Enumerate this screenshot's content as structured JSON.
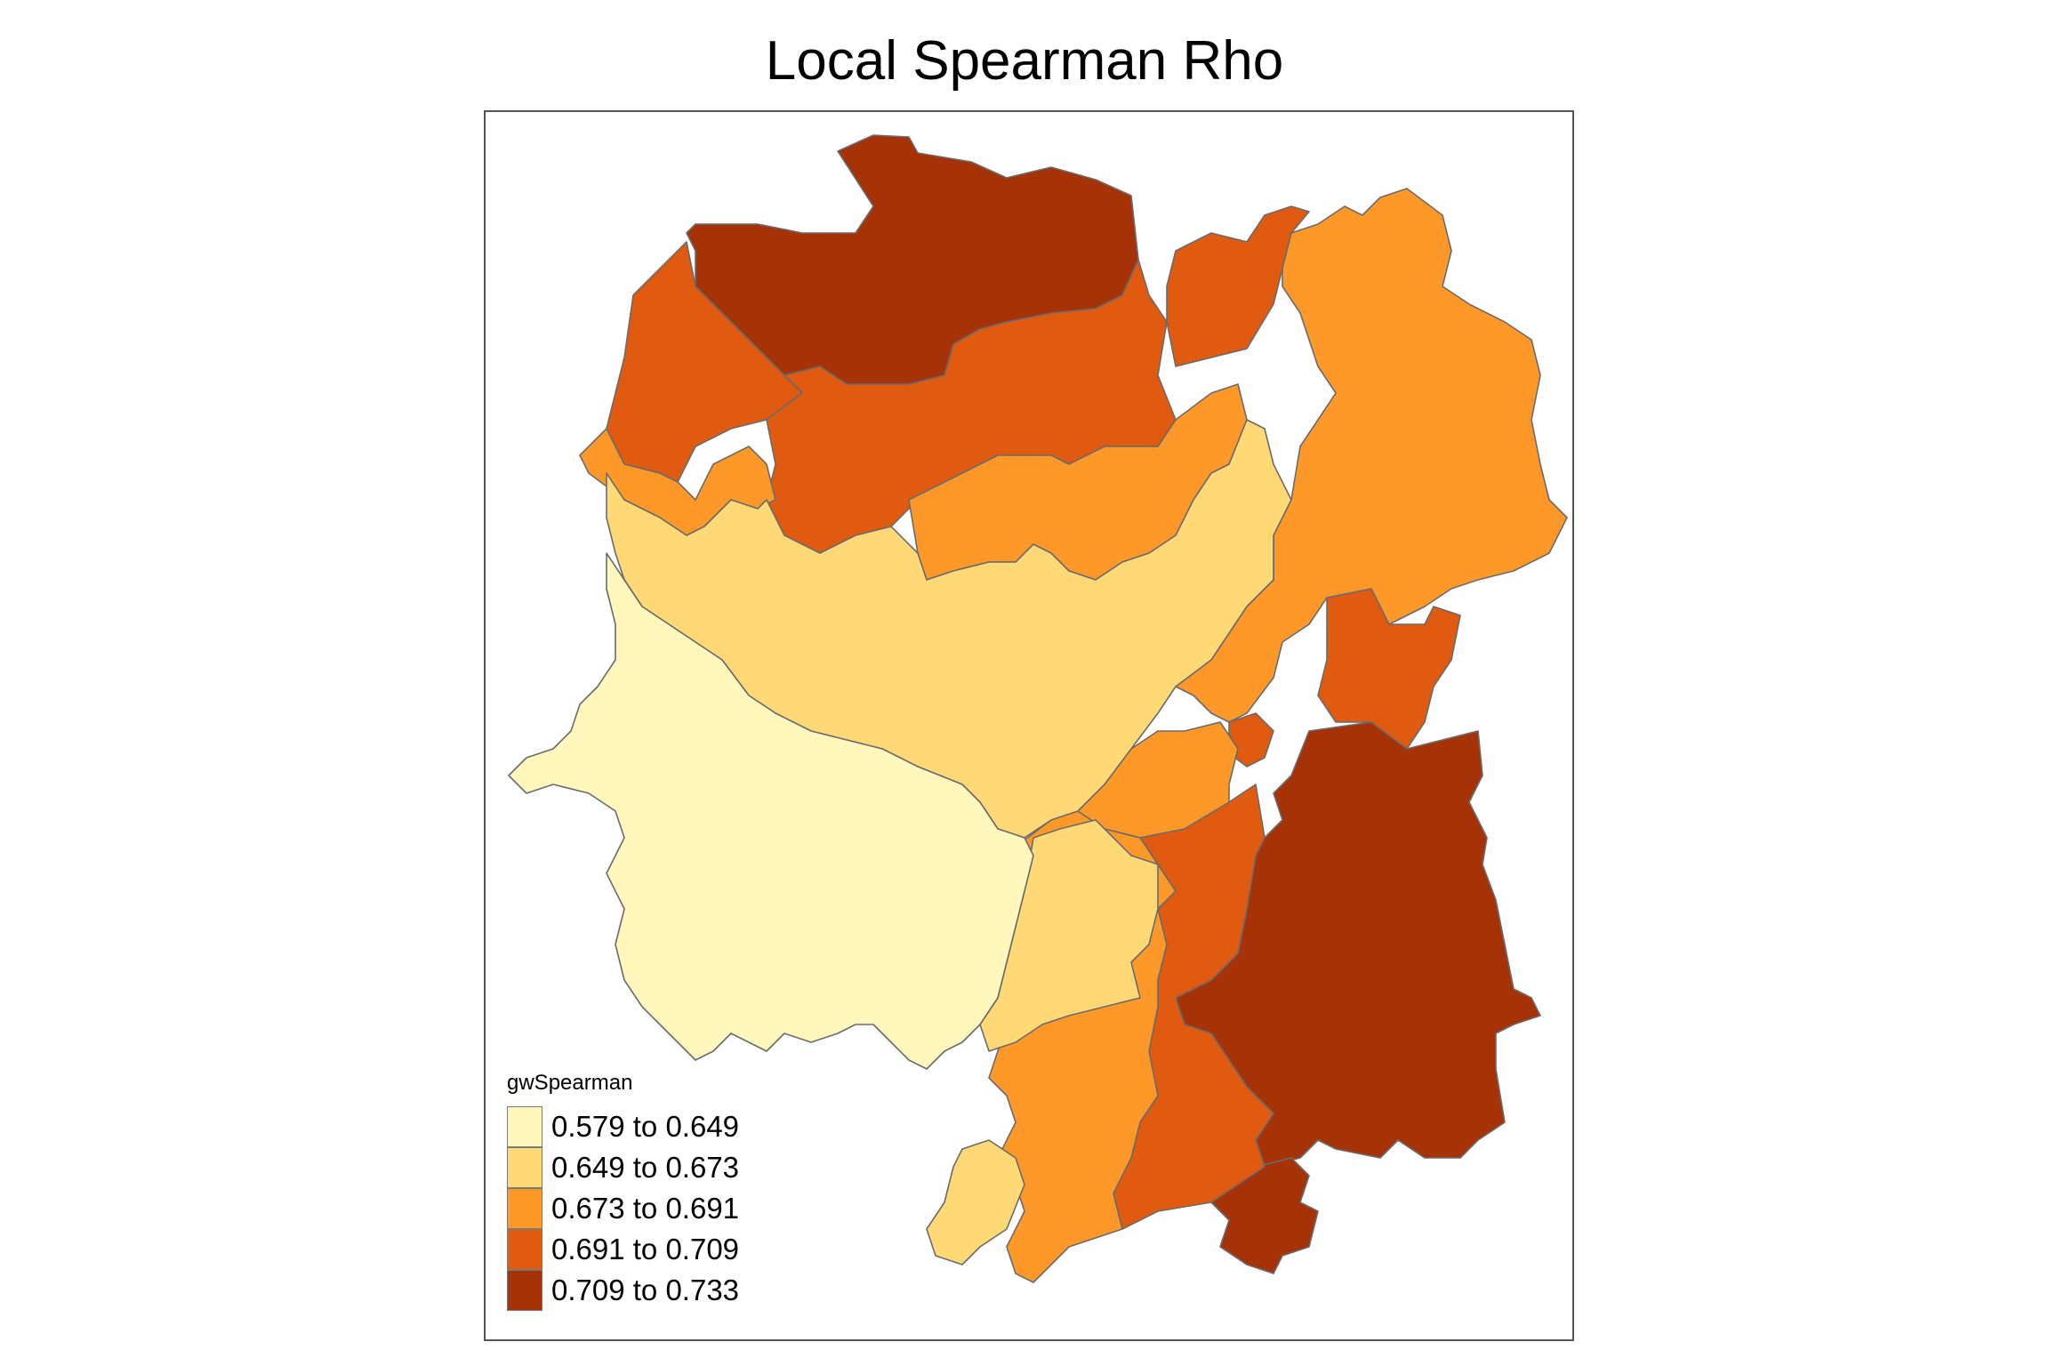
{
  "title": "Local Spearman Rho",
  "legend": {
    "title": "gwSpearman",
    "classes": [
      {
        "label": "0.579 to 0.649",
        "color": "#FFF7BC"
      },
      {
        "label": "0.649 to 0.673",
        "color": "#FED976"
      },
      {
        "label": "0.673 to 0.691",
        "color": "#FE9929"
      },
      {
        "label": "0.691 to 0.709",
        "color": "#E05A10"
      },
      {
        "label": "0.709 to 0.733",
        "color": "#A63207"
      }
    ]
  },
  "map": {
    "stroke_color": "#6b6b6b",
    "frame_color": "#555555"
  }
}
